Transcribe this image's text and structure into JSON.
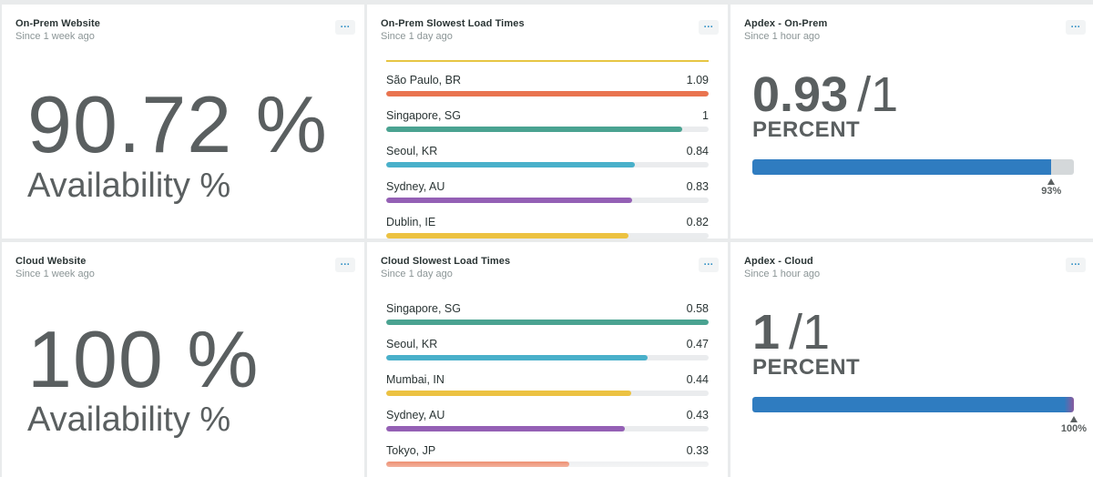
{
  "colors": {
    "orange": "#e9744f",
    "teal": "#4aa391",
    "cyan": "#49b0ca",
    "purple": "#9460b5",
    "yellow": "#ecc242",
    "apdex_blue": "#2f7cc0",
    "apdex_end": "#8a5a9e"
  },
  "menu_label": "...",
  "onprem_website": {
    "title": "On-Prem Website",
    "subtitle": "Since 1 week ago",
    "value": "90.72 %",
    "label": "Availability %"
  },
  "onprem_load": {
    "title": "On-Prem Slowest Load Times",
    "subtitle": "Since 1 day ago",
    "max": 1.09,
    "rows": [
      {
        "name": "São Paulo, BR",
        "value": "1.09",
        "num": 1.09,
        "color": "#e9744f"
      },
      {
        "name": "Singapore, SG",
        "value": "1",
        "num": 1.0,
        "color": "#4aa391"
      },
      {
        "name": "Seoul, KR",
        "value": "0.84",
        "num": 0.84,
        "color": "#49b0ca"
      },
      {
        "name": "Sydney, AU",
        "value": "0.83",
        "num": 0.83,
        "color": "#9460b5"
      },
      {
        "name": "Dublin, IE",
        "value": "0.82",
        "num": 0.82,
        "color": "#ecc242"
      }
    ]
  },
  "apdex_onprem": {
    "title": "Apdex - On-Prem",
    "subtitle": "Since 1 hour ago",
    "score": "0.93",
    "max": "/1",
    "unit": "PERCENT",
    "fraction": 0.93,
    "marker": "93%"
  },
  "cloud_website": {
    "title": "Cloud Website",
    "subtitle": "Since 1 week ago",
    "value": "100 %",
    "label": "Availability %"
  },
  "cloud_load": {
    "title": "Cloud Slowest Load Times",
    "subtitle": "Since 1 day ago",
    "max": 0.58,
    "rows": [
      {
        "name": "Singapore, SG",
        "value": "0.58",
        "num": 0.58,
        "color": "#4aa391"
      },
      {
        "name": "Seoul, KR",
        "value": "0.47",
        "num": 0.47,
        "color": "#49b0ca"
      },
      {
        "name": "Mumbai, IN",
        "value": "0.44",
        "num": 0.44,
        "color": "#ecc242"
      },
      {
        "name": "Sydney, AU",
        "value": "0.43",
        "num": 0.43,
        "color": "#9460b5"
      },
      {
        "name": "Tokyo, JP",
        "value": "0.33",
        "num": 0.33,
        "color": "#e9744f"
      }
    ]
  },
  "apdex_cloud": {
    "title": "Apdex - Cloud",
    "subtitle": "Since 1 hour ago",
    "score": "1",
    "max": "/1",
    "unit": "PERCENT",
    "fraction": 1.0,
    "marker": "100%"
  }
}
